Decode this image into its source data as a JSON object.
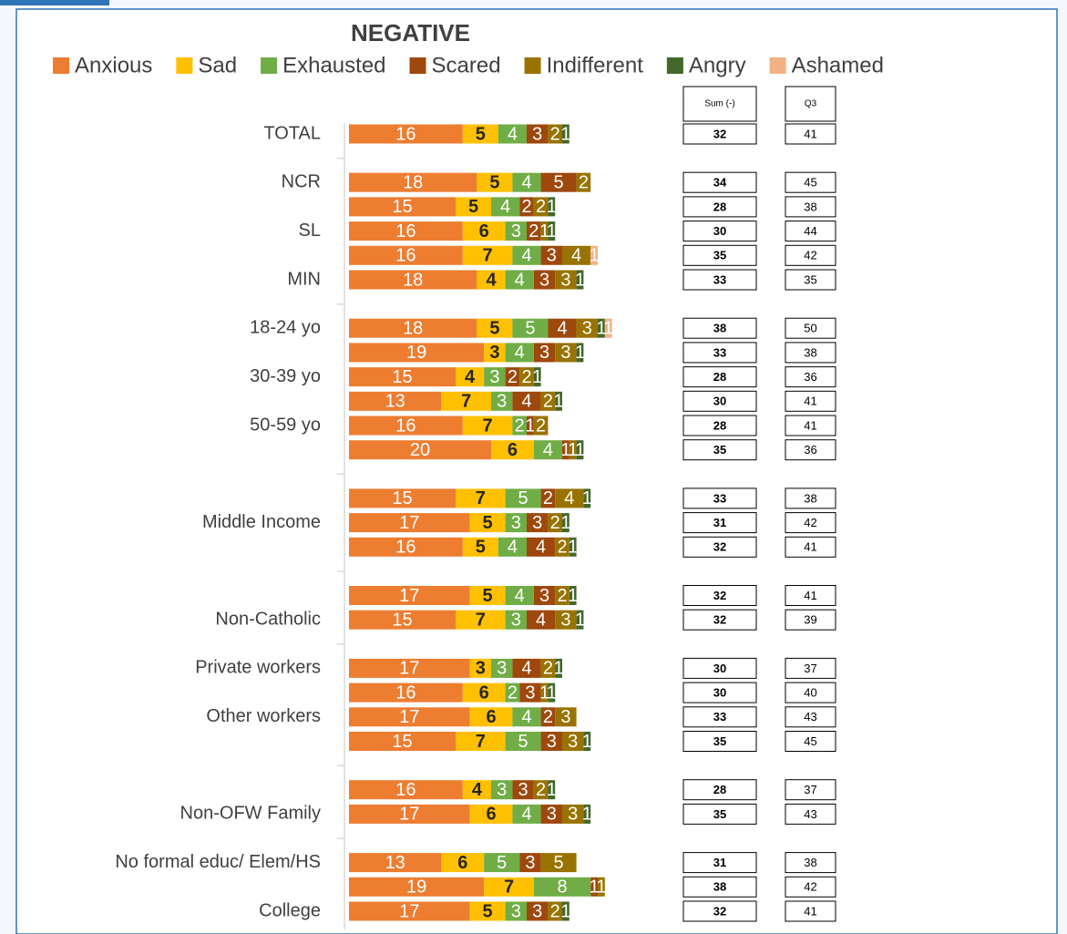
{
  "chart_data": {
    "type": "bar",
    "orientation": "horizontal",
    "stacked": true,
    "title": "NEGATIVE",
    "xlim": [
      0,
      100
    ],
    "categories": [
      "TOTAL",
      "NCR",
      null,
      "SL",
      null,
      "MIN",
      "18-24 yo",
      null,
      "30-39 yo",
      null,
      "50-59 yo",
      null,
      null,
      "Middle Income",
      null,
      null,
      "Non-Catholic",
      "Private workers",
      null,
      "Other workers",
      null,
      null,
      "Non-OFW Family",
      "No formal educ/ Elem/HS",
      null,
      "College"
    ],
    "series": [
      {
        "name": "Anxious",
        "color": "#ed7d31",
        "values": [
          16,
          18,
          15,
          16,
          16,
          18,
          18,
          19,
          15,
          13,
          16,
          20,
          15,
          17,
          16,
          17,
          15,
          17,
          16,
          17,
          15,
          16,
          17,
          13,
          19,
          17
        ]
      },
      {
        "name": "Sad",
        "color": "#ffc000",
        "values": [
          5,
          5,
          5,
          6,
          7,
          4,
          5,
          3,
          4,
          7,
          7,
          6,
          7,
          5,
          5,
          5,
          7,
          3,
          6,
          6,
          7,
          4,
          6,
          6,
          7,
          5
        ]
      },
      {
        "name": "Exhausted",
        "color": "#70ad47",
        "values": [
          4,
          4,
          4,
          3,
          4,
          4,
          5,
          4,
          3,
          3,
          2,
          4,
          5,
          3,
          4,
          4,
          3,
          3,
          2,
          4,
          5,
          3,
          4,
          5,
          8,
          3
        ]
      },
      {
        "name": "Scared",
        "color": "#9e480e",
        "values": [
          3,
          5,
          2,
          2,
          3,
          3,
          4,
          3,
          2,
          4,
          1,
          1,
          2,
          3,
          4,
          3,
          4,
          4,
          3,
          2,
          3,
          3,
          3,
          3,
          1,
          3
        ]
      },
      {
        "name": "Indifferent",
        "color": "#997300",
        "values": [
          2,
          2,
          2,
          1,
          4,
          3,
          3,
          3,
          2,
          2,
          2,
          1,
          4,
          2,
          2,
          2,
          3,
          2,
          1,
          3,
          3,
          2,
          3,
          5,
          1,
          2
        ]
      },
      {
        "name": "Angry",
        "color": "#43682b",
        "values": [
          1,
          null,
          1,
          1,
          null,
          1,
          1,
          1,
          1,
          1,
          null,
          1,
          1,
          1,
          1,
          1,
          1,
          1,
          1,
          null,
          1,
          1,
          1,
          null,
          null,
          1
        ]
      },
      {
        "name": "Ashamed",
        "color": "#f4b183",
        "values": [
          null,
          null,
          null,
          null,
          1,
          null,
          1,
          null,
          null,
          null,
          null,
          null,
          null,
          null,
          null,
          null,
          null,
          null,
          null,
          null,
          null,
          null,
          null,
          null,
          null,
          null
        ]
      }
    ],
    "table": {
      "columns": [
        {
          "header": "Sum (-)",
          "values": [
            32,
            34,
            28,
            30,
            35,
            33,
            38,
            33,
            28,
            30,
            28,
            35,
            33,
            31,
            32,
            32,
            32,
            30,
            30,
            33,
            35,
            28,
            35,
            31,
            38,
            32
          ]
        },
        {
          "header": "Q3",
          "values": [
            41,
            45,
            38,
            44,
            42,
            35,
            50,
            38,
            36,
            41,
            41,
            36,
            38,
            42,
            41,
            41,
            39,
            37,
            40,
            43,
            45,
            37,
            43,
            38,
            42,
            41
          ]
        }
      ]
    }
  }
}
